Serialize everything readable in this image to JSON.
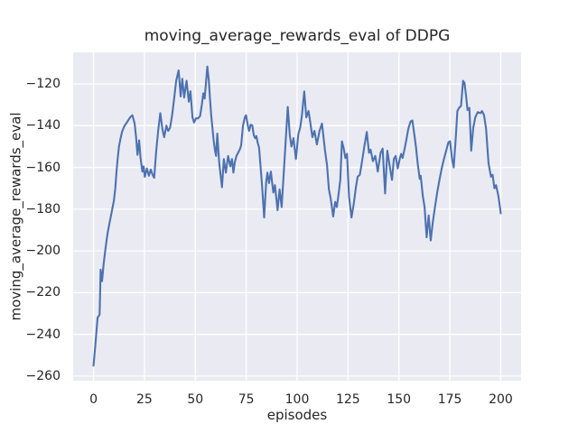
{
  "chart_data": {
    "type": "line",
    "title": "moving_average_rewards_eval of DDPG",
    "xlabel": "episodes",
    "ylabel": "moving_average_rewards_eval",
    "xlim": [
      -10,
      210
    ],
    "ylim": [
      -262.2,
      -104.85
    ],
    "xticks": [
      0,
      25,
      50,
      75,
      100,
      125,
      150,
      175,
      200
    ],
    "yticks": [
      -120,
      -140,
      -160,
      -180,
      -200,
      -220,
      -240,
      -260
    ],
    "grid": true,
    "legend_position": "none",
    "colors": {
      "figure_bg": "#ffffff",
      "axes_bg": "#eaeaf2",
      "grid": "#ffffff",
      "line": "#4c72b0",
      "text": "#262626"
    },
    "series": [
      {
        "name": "moving_average_rewards_eval",
        "points": [
          [
            0,
            -255
          ],
          [
            1,
            -244
          ],
          [
            2,
            -232
          ],
          [
            3,
            -230.5
          ],
          [
            3.5,
            -209
          ],
          [
            4.2,
            -214.5
          ],
          [
            5,
            -206
          ],
          [
            6,
            -198
          ],
          [
            7,
            -191
          ],
          [
            8,
            -186
          ],
          [
            9,
            -181
          ],
          [
            10,
            -176
          ],
          [
            10.7,
            -170
          ],
          [
            11.3,
            -162
          ],
          [
            11.9,
            -155.5
          ],
          [
            12.5,
            -150
          ],
          [
            13.2,
            -146.5
          ],
          [
            14,
            -143
          ],
          [
            15,
            -140.5
          ],
          [
            16,
            -139
          ],
          [
            17,
            -137.5
          ],
          [
            18,
            -136
          ],
          [
            19.1,
            -135
          ],
          [
            20.2,
            -139
          ],
          [
            20.9,
            -145.5
          ],
          [
            21.6,
            -154
          ],
          [
            22.4,
            -147
          ],
          [
            23.1,
            -155.5
          ],
          [
            24,
            -162
          ],
          [
            24.6,
            -159.5
          ],
          [
            25.2,
            -164.5
          ],
          [
            26.2,
            -160.5
          ],
          [
            27.2,
            -164
          ],
          [
            28.1,
            -161
          ],
          [
            29,
            -163.5
          ],
          [
            29.8,
            -165
          ],
          [
            30.8,
            -152
          ],
          [
            31.8,
            -142
          ],
          [
            32.8,
            -134
          ],
          [
            33.8,
            -141.5
          ],
          [
            34.7,
            -145.5
          ],
          [
            35.8,
            -140
          ],
          [
            36.7,
            -142.5
          ],
          [
            37.6,
            -141
          ],
          [
            38.6,
            -135
          ],
          [
            39.6,
            -127
          ],
          [
            40.6,
            -118.5
          ],
          [
            41.8,
            -113.5
          ],
          [
            42.8,
            -126
          ],
          [
            43.6,
            -117.5
          ],
          [
            44.5,
            -126.5
          ],
          [
            45.7,
            -118.5
          ],
          [
            46.8,
            -128.5
          ],
          [
            47.6,
            -123.5
          ],
          [
            48.6,
            -136
          ],
          [
            49.4,
            -138.5
          ],
          [
            50.3,
            -136.5
          ],
          [
            51.3,
            -136.5
          ],
          [
            52.3,
            -135.5
          ],
          [
            53.2,
            -130
          ],
          [
            53.9,
            -124.5
          ],
          [
            54.6,
            -127
          ],
          [
            55.9,
            -111.7
          ],
          [
            56.6,
            -118
          ],
          [
            57.2,
            -127
          ],
          [
            57.8,
            -135
          ],
          [
            58.4,
            -141
          ],
          [
            59,
            -147
          ],
          [
            59.6,
            -151.5
          ],
          [
            60.2,
            -154.5
          ],
          [
            60.8,
            -143.8
          ],
          [
            61.7,
            -157.5
          ],
          [
            62.5,
            -164.5
          ],
          [
            63.1,
            -169.5
          ],
          [
            64,
            -156
          ],
          [
            65,
            -162.5
          ],
          [
            66.1,
            -154.5
          ],
          [
            67.2,
            -159.5
          ],
          [
            68,
            -156
          ],
          [
            68.7,
            -162.5
          ],
          [
            69.4,
            -157.5
          ],
          [
            70.2,
            -154.5
          ],
          [
            71,
            -153
          ],
          [
            71.8,
            -151.5
          ],
          [
            72.5,
            -149.5
          ],
          [
            73.4,
            -140
          ],
          [
            74.3,
            -136
          ],
          [
            74.9,
            -135
          ],
          [
            75.8,
            -140
          ],
          [
            76.4,
            -142.5
          ],
          [
            77.2,
            -139.5
          ],
          [
            78,
            -140
          ],
          [
            78.7,
            -144.5
          ],
          [
            79.4,
            -146
          ],
          [
            80,
            -145
          ],
          [
            80.6,
            -148
          ],
          [
            81.3,
            -150.5
          ],
          [
            82,
            -159
          ],
          [
            82.8,
            -169
          ],
          [
            83.8,
            -184
          ],
          [
            84.8,
            -167
          ],
          [
            85.4,
            -162.5
          ],
          [
            86.2,
            -167.5
          ],
          [
            87.1,
            -162
          ],
          [
            88.3,
            -172
          ],
          [
            89.1,
            -168.5
          ],
          [
            90.4,
            -180.5
          ],
          [
            91.4,
            -170.5
          ],
          [
            92.4,
            -179
          ],
          [
            93.4,
            -163
          ],
          [
            94.4,
            -147
          ],
          [
            95.4,
            -131
          ],
          [
            96.4,
            -144.5
          ],
          [
            97.2,
            -150
          ],
          [
            98.2,
            -146
          ],
          [
            99.4,
            -156
          ],
          [
            100.6,
            -144
          ],
          [
            101.5,
            -141
          ],
          [
            102.3,
            -135.5
          ],
          [
            103.5,
            -123.6
          ],
          [
            104.5,
            -136
          ],
          [
            105.6,
            -133
          ],
          [
            106.4,
            -138
          ],
          [
            107.5,
            -145.5
          ],
          [
            108.5,
            -142.5
          ],
          [
            109.7,
            -149
          ],
          [
            111,
            -142.5
          ],
          [
            112.2,
            -139
          ],
          [
            113.7,
            -152
          ],
          [
            114.7,
            -159
          ],
          [
            115.6,
            -170.5
          ],
          [
            116.5,
            -175
          ],
          [
            117.7,
            -183.5
          ],
          [
            118.7,
            -176.5
          ],
          [
            119.5,
            -179
          ],
          [
            120.4,
            -172.5
          ],
          [
            121.2,
            -166
          ],
          [
            122,
            -147.5
          ],
          [
            122.9,
            -151
          ],
          [
            123.7,
            -155.5
          ],
          [
            124.5,
            -153.5
          ],
          [
            125.5,
            -174
          ],
          [
            126.7,
            -184
          ],
          [
            127.8,
            -177.5
          ],
          [
            128.8,
            -170
          ],
          [
            129.7,
            -164.5
          ],
          [
            130.8,
            -163.5
          ],
          [
            131.9,
            -157
          ],
          [
            133,
            -150
          ],
          [
            134.2,
            -143
          ],
          [
            135.3,
            -153
          ],
          [
            136.1,
            -151.5
          ],
          [
            137.2,
            -157
          ],
          [
            138.4,
            -154.5
          ],
          [
            139.6,
            -162
          ],
          [
            141,
            -153
          ],
          [
            142,
            -151
          ],
          [
            143.2,
            -172.5
          ],
          [
            144.3,
            -152
          ],
          [
            145.1,
            -157
          ],
          [
            145.9,
            -162
          ],
          [
            146.6,
            -166
          ],
          [
            147.5,
            -156
          ],
          [
            148.4,
            -154.5
          ],
          [
            149.4,
            -160.5
          ],
          [
            150.5,
            -155.5
          ],
          [
            151.1,
            -153.5
          ],
          [
            151.8,
            -155.5
          ],
          [
            152.6,
            -152
          ],
          [
            153.6,
            -147
          ],
          [
            154.6,
            -141.5
          ],
          [
            155.7,
            -138
          ],
          [
            156.6,
            -137.5
          ],
          [
            157.6,
            -144.5
          ],
          [
            158.4,
            -150.5
          ],
          [
            159.2,
            -158
          ],
          [
            160.2,
            -165.5
          ],
          [
            160.7,
            -164
          ],
          [
            161.7,
            -173.5
          ],
          [
            162.6,
            -179
          ],
          [
            163.6,
            -193.5
          ],
          [
            164.6,
            -183
          ],
          [
            165.6,
            -195
          ],
          [
            166.6,
            -186.5
          ],
          [
            167.7,
            -179
          ],
          [
            168.8,
            -172
          ],
          [
            170,
            -165.5
          ],
          [
            171,
            -160.5
          ],
          [
            172.1,
            -156
          ],
          [
            173.2,
            -152
          ],
          [
            174.3,
            -148
          ],
          [
            175.1,
            -147.5
          ],
          [
            176.1,
            -156
          ],
          [
            176.9,
            -160
          ],
          [
            177.9,
            -146
          ],
          [
            178.7,
            -133
          ],
          [
            179.5,
            -131.5
          ],
          [
            180.5,
            -130.5
          ],
          [
            181.5,
            -118.5
          ],
          [
            182.2,
            -119.5
          ],
          [
            183,
            -126
          ],
          [
            183.7,
            -132.5
          ],
          [
            184.6,
            -131.5
          ],
          [
            185.5,
            -152
          ],
          [
            186.5,
            -141
          ],
          [
            187.5,
            -136
          ],
          [
            188.7,
            -133.5
          ],
          [
            190,
            -134
          ],
          [
            190.8,
            -133
          ],
          [
            191.8,
            -135
          ],
          [
            192.8,
            -141.5
          ],
          [
            194,
            -158
          ],
          [
            195.2,
            -164.5
          ],
          [
            196,
            -163.5
          ],
          [
            196.9,
            -170
          ],
          [
            197.7,
            -168.5
          ],
          [
            198.8,
            -173.5
          ],
          [
            199.4,
            -177.5
          ],
          [
            200,
            -182
          ]
        ]
      }
    ]
  }
}
